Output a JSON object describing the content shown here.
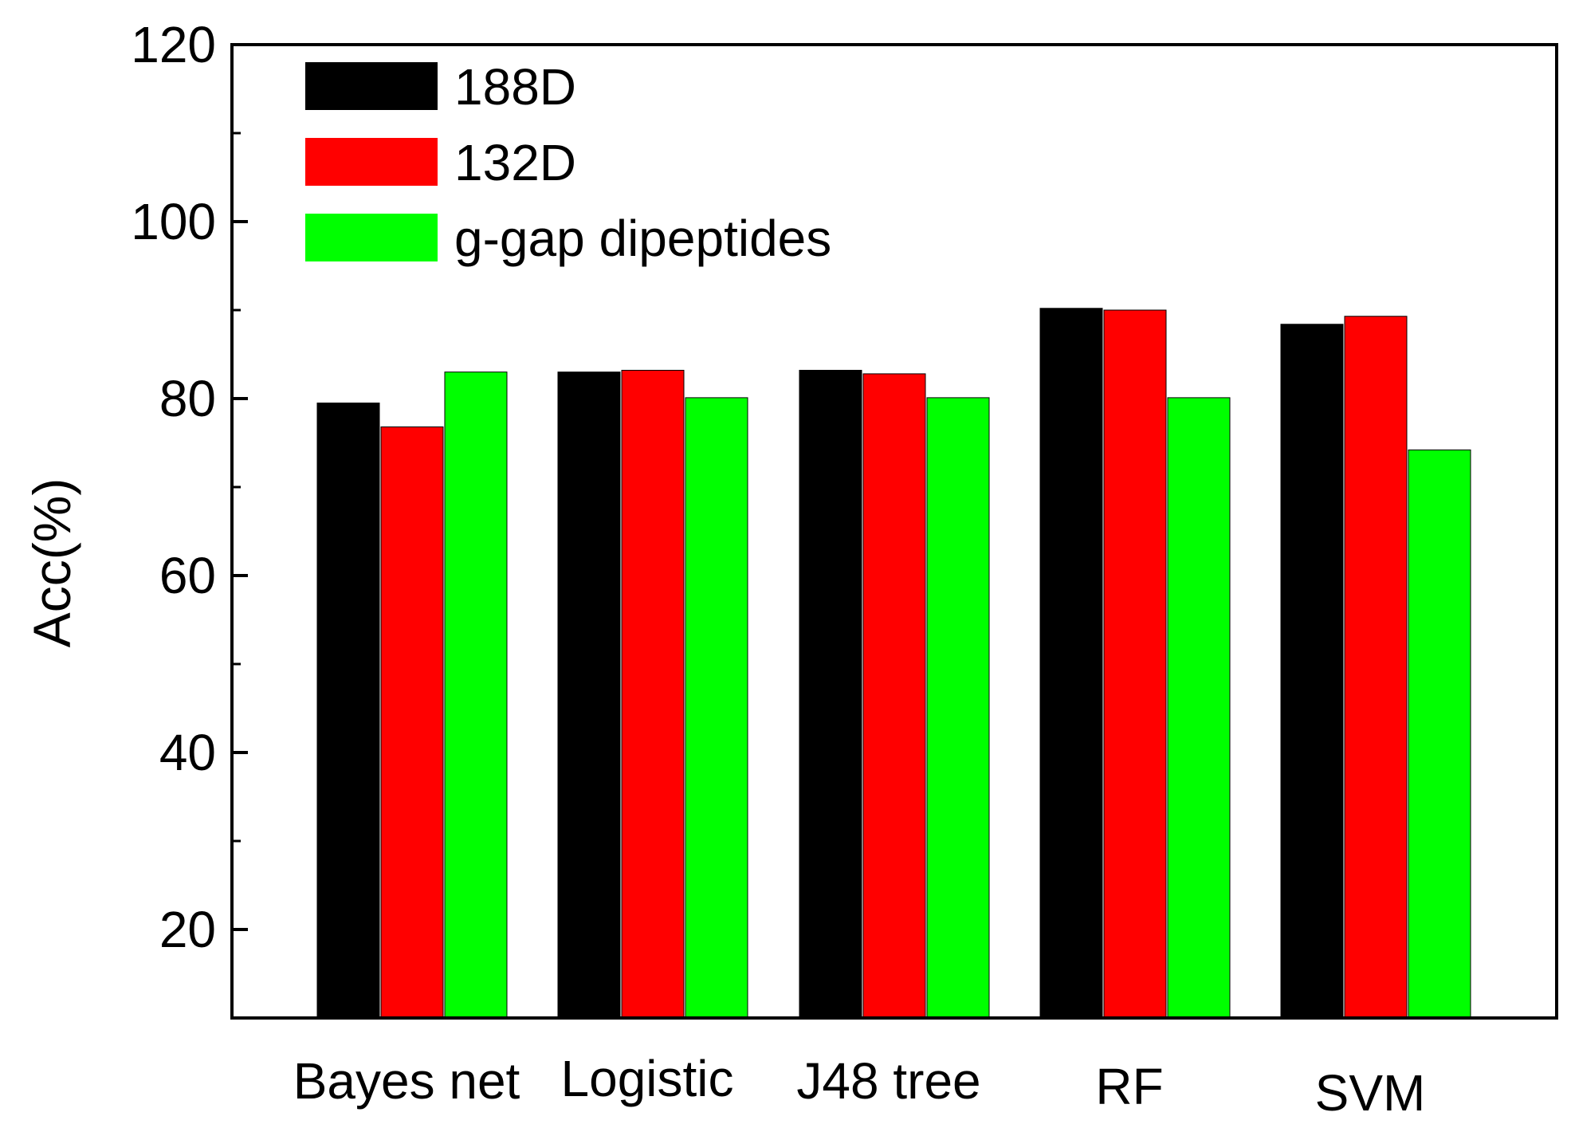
{
  "chart_data": {
    "type": "bar",
    "title": "",
    "xlabel": "",
    "ylabel": "Acc(%)",
    "ylim": [
      10,
      120
    ],
    "yticks_major": [
      20,
      40,
      60,
      80,
      100,
      120
    ],
    "yticks_minor": [
      30,
      50,
      70,
      90,
      110
    ],
    "grid": false,
    "legend_position": "top-left",
    "categories": [
      "Bayes net",
      "Logistic",
      "J48 tree",
      "RF",
      "SVM"
    ],
    "series": [
      {
        "name": "188D",
        "color": "#000000",
        "values": [
          79.5,
          83.0,
          83.2,
          90.2,
          88.4
        ]
      },
      {
        "name": "132D",
        "color": "#ff0000",
        "values": [
          76.8,
          83.2,
          82.8,
          90.0,
          89.3
        ]
      },
      {
        "name": "g-gap dipeptides",
        "color": "#00ff00",
        "values": [
          83.0,
          80.1,
          80.1,
          80.1,
          74.2
        ]
      }
    ]
  }
}
